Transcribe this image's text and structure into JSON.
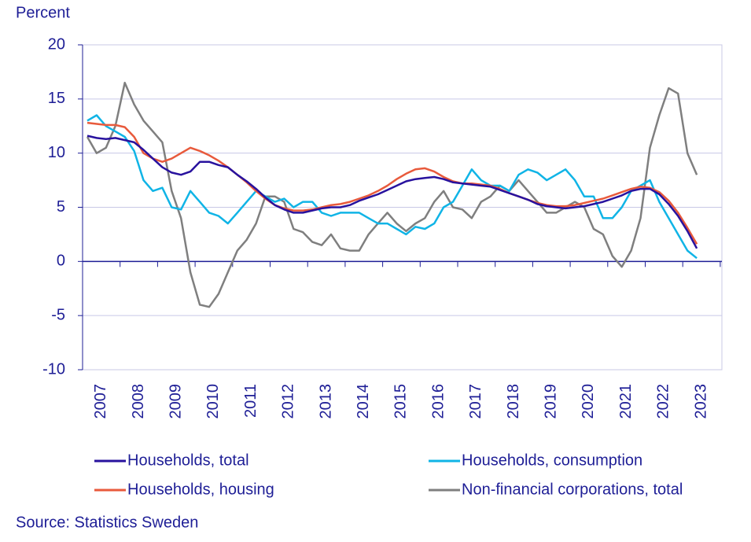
{
  "chart_data": {
    "type": "line",
    "y_label": "Percent",
    "source": "Source: Statistics Sweden",
    "categories": [
      "2007",
      null,
      null,
      null,
      "2008",
      null,
      null,
      null,
      "2009",
      null,
      null,
      null,
      "2010",
      null,
      null,
      null,
      "2011",
      null,
      null,
      null,
      "2012",
      null,
      null,
      null,
      "2013",
      null,
      null,
      null,
      "2014",
      null,
      null,
      null,
      "2015",
      null,
      null,
      null,
      "2016",
      null,
      null,
      null,
      "2017",
      null,
      null,
      null,
      "2018",
      null,
      null,
      null,
      "2019",
      null,
      null,
      null,
      "2020",
      null,
      null,
      null,
      "2021",
      null,
      null,
      null,
      "2022",
      null,
      null,
      null,
      "2023",
      null
    ],
    "series": [
      {
        "name": "Households, total",
        "color": "#28129e",
        "values": [
          11.6,
          11.4,
          11.3,
          11.4,
          11.2,
          11.0,
          10.3,
          9.5,
          8.7,
          8.2,
          8.0,
          8.3,
          9.2,
          9.2,
          8.9,
          8.7,
          8.0,
          7.4,
          6.7,
          5.9,
          5.2,
          4.8,
          4.5,
          4.5,
          4.7,
          4.9,
          5.0,
          5.0,
          5.2,
          5.6,
          5.9,
          6.2,
          6.6,
          7.0,
          7.4,
          7.6,
          7.7,
          7.8,
          7.6,
          7.3,
          7.2,
          7.1,
          7.0,
          6.9,
          6.6,
          6.3,
          6.0,
          5.7,
          5.3,
          5.1,
          5.0,
          4.9,
          5.0,
          5.1,
          5.3,
          5.5,
          5.8,
          6.1,
          6.5,
          6.7,
          6.7,
          6.2,
          5.3,
          4.2,
          2.8,
          1.2
        ]
      },
      {
        "name": "Households, consumption",
        "color": "#10b4e6",
        "values": [
          13.0,
          13.5,
          12.5,
          12.0,
          11.5,
          10.2,
          7.5,
          6.5,
          6.8,
          5.0,
          4.8,
          6.5,
          5.5,
          4.5,
          4.2,
          3.5,
          4.5,
          5.5,
          6.5,
          6.0,
          5.5,
          5.8,
          5.0,
          5.5,
          5.5,
          4.5,
          4.2,
          4.5,
          4.5,
          4.5,
          4.0,
          3.5,
          3.5,
          3.0,
          2.5,
          3.2,
          3.0,
          3.5,
          5.0,
          5.5,
          7.0,
          8.5,
          7.5,
          7.0,
          7.0,
          6.5,
          8.0,
          8.5,
          8.2,
          7.5,
          8.0,
          8.5,
          7.5,
          6.0,
          6.0,
          4.0,
          4.0,
          5.0,
          6.5,
          7.0,
          7.5,
          5.5,
          4.0,
          2.5,
          1.0,
          0.3
        ]
      },
      {
        "name": "Households, housing",
        "color": "#e85a3c",
        "values": [
          12.8,
          12.7,
          12.6,
          12.6,
          12.4,
          11.5,
          10.0,
          9.5,
          9.2,
          9.5,
          10.0,
          10.5,
          10.2,
          9.8,
          9.3,
          8.7,
          8.0,
          7.3,
          6.5,
          5.8,
          5.2,
          4.9,
          4.7,
          4.7,
          4.8,
          5.0,
          5.2,
          5.3,
          5.5,
          5.8,
          6.1,
          6.5,
          7.0,
          7.6,
          8.1,
          8.5,
          8.6,
          8.3,
          7.8,
          7.4,
          7.2,
          7.2,
          7.1,
          7.0,
          6.7,
          6.3,
          6.0,
          5.7,
          5.4,
          5.2,
          5.1,
          5.1,
          5.2,
          5.4,
          5.6,
          5.8,
          6.1,
          6.4,
          6.7,
          6.9,
          6.8,
          6.4,
          5.6,
          4.5,
          3.1,
          1.6
        ]
      },
      {
        "name": "Non-financial corporations, total",
        "color": "#7f7f7f",
        "values": [
          11.5,
          10.0,
          10.5,
          12.5,
          16.5,
          14.5,
          13.0,
          12.0,
          11.0,
          6.5,
          4.0,
          -1.0,
          -4.0,
          -4.2,
          -3.0,
          -1.0,
          1.0,
          2.0,
          3.5,
          6.0,
          6.0,
          5.5,
          3.0,
          2.7,
          1.8,
          1.5,
          2.5,
          1.2,
          1.0,
          1.0,
          2.5,
          3.5,
          4.5,
          3.5,
          2.8,
          3.5,
          4.0,
          5.5,
          6.5,
          5.0,
          4.8,
          4.0,
          5.5,
          6.0,
          7.0,
          6.5,
          7.5,
          6.5,
          5.5,
          4.5,
          4.5,
          5.0,
          5.5,
          5.0,
          3.0,
          2.5,
          0.5,
          -0.5,
          1.0,
          4.0,
          10.5,
          13.5,
          16.0,
          15.5,
          10.0,
          8.0
        ]
      }
    ],
    "ylim": [
      -10,
      20
    ],
    "yticks": [
      -10,
      -5,
      0,
      5,
      10,
      15,
      20
    ],
    "grid": true,
    "legend": "bottom"
  }
}
